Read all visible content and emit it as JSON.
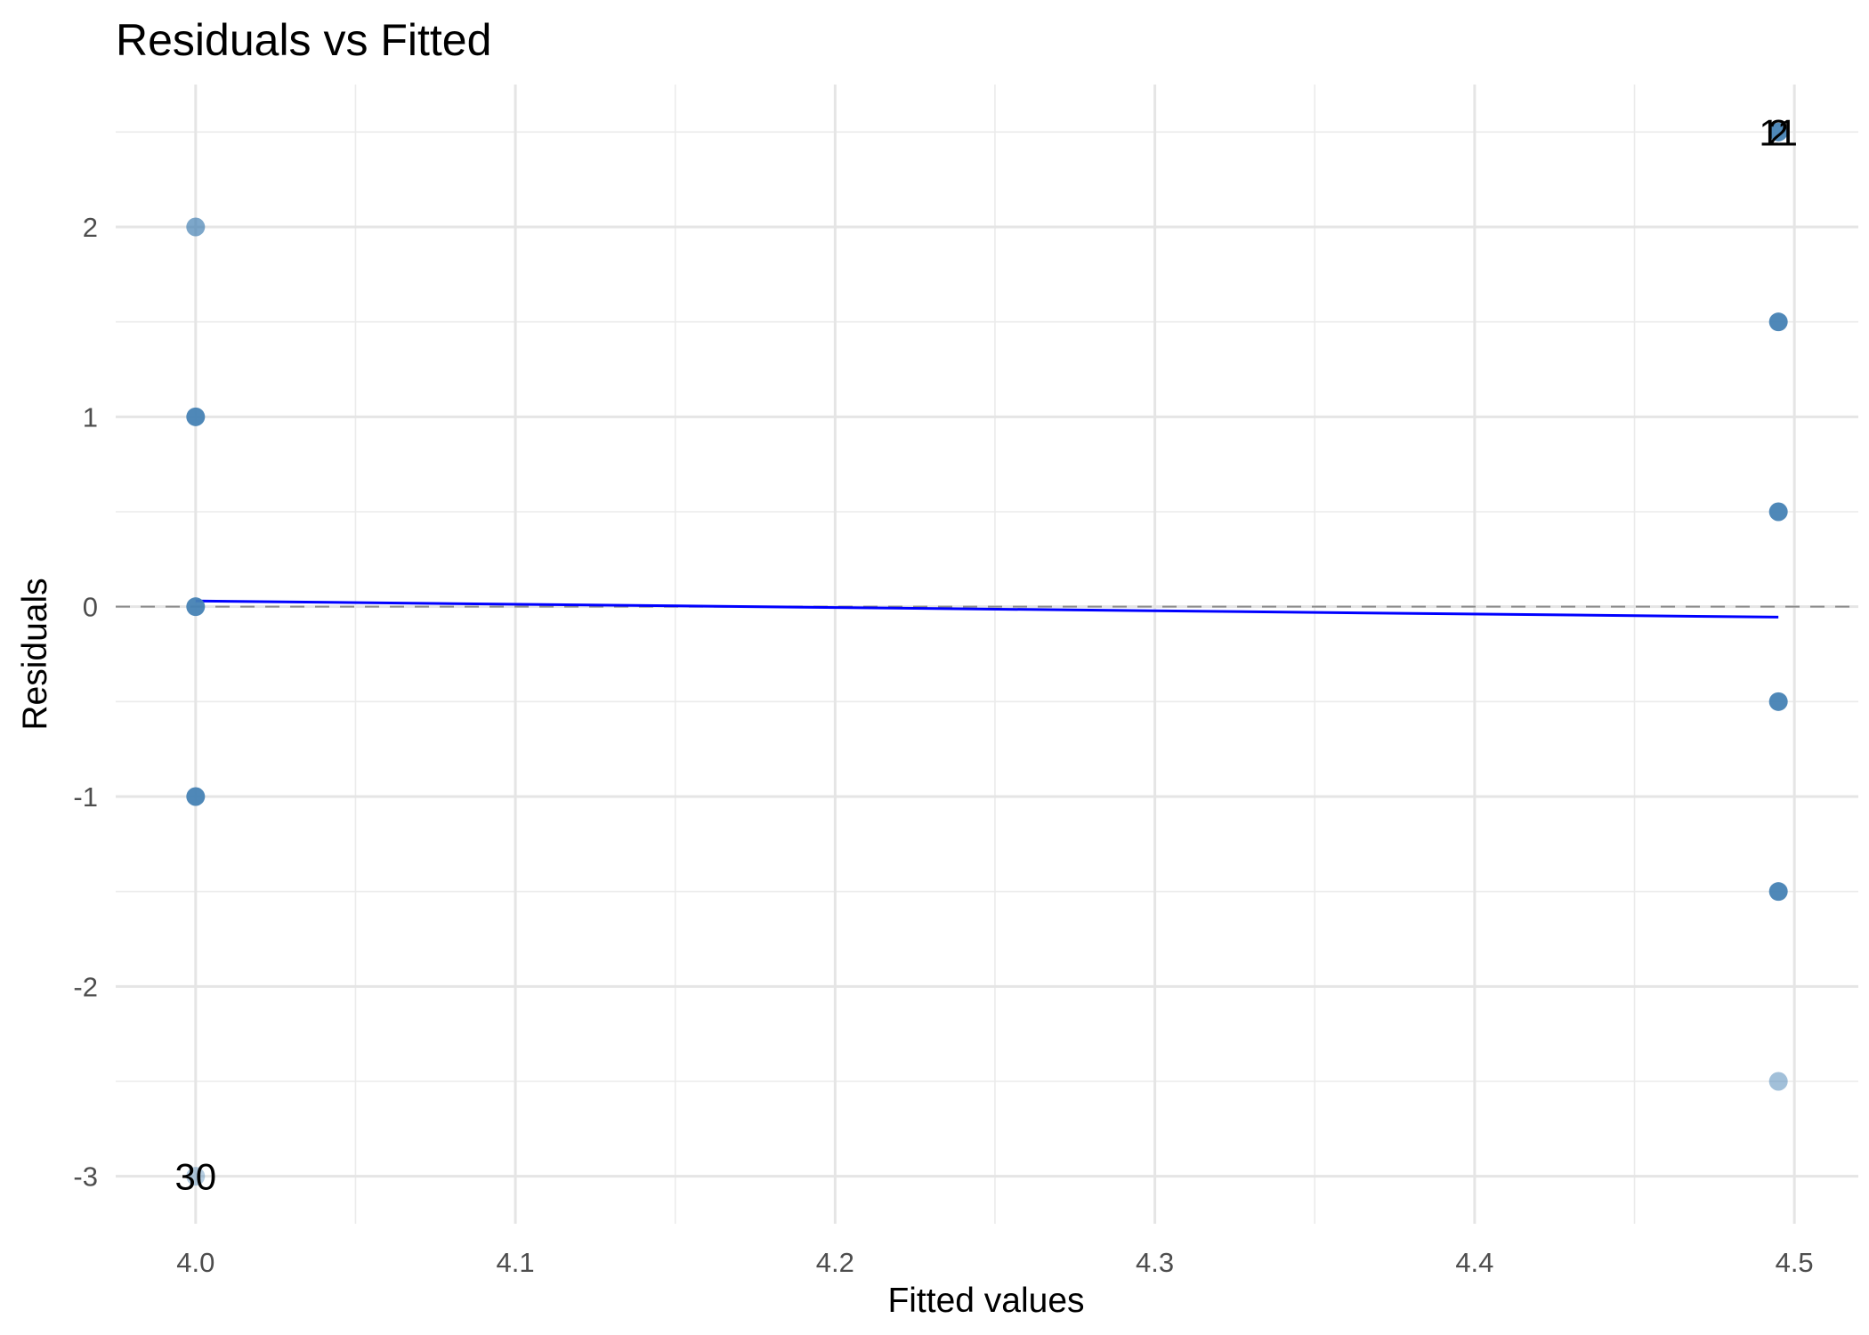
{
  "chart_data": {
    "type": "scatter",
    "title": "Residuals vs Fitted",
    "xlabel": "Fitted values",
    "ylabel": "Residuals",
    "xlim": [
      3.975,
      4.52
    ],
    "ylim": [
      -3.25,
      2.75
    ],
    "x_ticks": [
      4.0,
      4.1,
      4.2,
      4.3,
      4.4,
      4.5
    ],
    "x_tick_labels": [
      "4.0",
      "4.1",
      "4.2",
      "4.3",
      "4.4",
      "4.5"
    ],
    "y_ticks": [
      -3,
      -2,
      -1,
      0,
      1,
      2
    ],
    "y_tick_labels": [
      "-3",
      "-2",
      "-1",
      "0",
      "1",
      "2"
    ],
    "x_minor_ticks": [
      4.05,
      4.15,
      4.25,
      4.35,
      4.45
    ],
    "y_minor_ticks": [
      -2.5,
      -1.5,
      -0.5,
      0.5,
      1.5,
      2.5
    ],
    "grid": true,
    "reference_line": {
      "y": 0,
      "style": "dashed",
      "color": "#8c8c8c"
    },
    "smooth_line": {
      "color": "#0000ff",
      "points": [
        [
          4.0,
          0.03
        ],
        [
          4.495,
          -0.055
        ]
      ]
    },
    "series": [
      {
        "color": "#4682b4",
        "points": [
          {
            "x": 4.0,
            "y": 2.0,
            "opacity": 0.7
          },
          {
            "x": 4.0,
            "y": 1.0,
            "opacity": 0.95
          },
          {
            "x": 4.0,
            "y": 0.0,
            "opacity": 0.95
          },
          {
            "x": 4.0,
            "y": -1.0,
            "opacity": 0.95
          },
          {
            "x": 4.0,
            "y": -3.0,
            "opacity": 0.4
          },
          {
            "x": 4.495,
            "y": 2.5,
            "opacity": 0.95
          },
          {
            "x": 4.495,
            "y": 1.5,
            "opacity": 0.95
          },
          {
            "x": 4.495,
            "y": 0.5,
            "opacity": 0.95
          },
          {
            "x": 4.495,
            "y": -0.5,
            "opacity": 0.95
          },
          {
            "x": 4.495,
            "y": -1.5,
            "opacity": 0.95
          },
          {
            "x": 4.495,
            "y": -2.5,
            "opacity": 0.5
          }
        ]
      }
    ],
    "annotations": [
      {
        "text": "30",
        "x": 4.0,
        "y": -3.0
      },
      {
        "text": "2",
        "x": 4.495,
        "y": 2.5
      },
      {
        "text": "11",
        "x": 4.495,
        "y": 2.5
      }
    ]
  }
}
